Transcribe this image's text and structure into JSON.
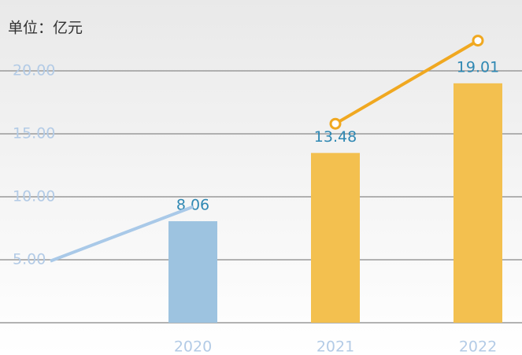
{
  "chart_data": {
    "type": "bar",
    "subtitle": "单位：亿元",
    "categories": [
      null,
      "2020",
      "2021",
      "2022"
    ],
    "series": [
      {
        "type": "bar",
        "colors": [
          null,
          "#9dc3e0",
          "#f3c04f",
          "#f3c04f"
        ],
        "values": [
          null,
          8.06,
          13.48,
          19.01
        ]
      },
      {
        "type": "line",
        "color": "#a9c9e8",
        "values": [
          4.9,
          9.2,
          null,
          null
        ]
      },
      {
        "type": "line",
        "color": "#f0a820",
        "markers": true,
        "values": [
          null,
          null,
          15.8,
          22.4
        ]
      }
    ],
    "ylim": [
      0,
      23
    ],
    "yticks": [
      {
        "value": 5,
        "label": "5.00"
      },
      {
        "value": 10,
        "label": "10.00"
      },
      {
        "value": 15,
        "label": "15.00"
      },
      {
        "value": 20,
        "label": "20.00"
      }
    ],
    "grid": true
  }
}
